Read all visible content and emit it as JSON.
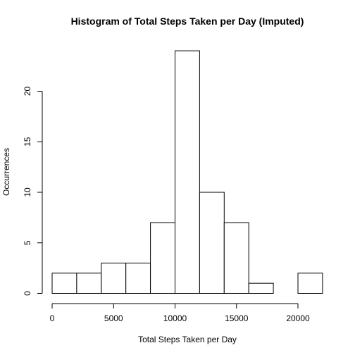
{
  "chart_data": {
    "type": "bar",
    "title": "Histogram of Total Steps Taken per Day (Imputed)",
    "xlabel": "Total Steps Taken per Day",
    "ylabel": "Occurrences",
    "bins": [
      {
        "start": 0,
        "end": 2000,
        "count": 2
      },
      {
        "start": 2000,
        "end": 4000,
        "count": 2
      },
      {
        "start": 4000,
        "end": 6000,
        "count": 3
      },
      {
        "start": 6000,
        "end": 8000,
        "count": 3
      },
      {
        "start": 8000,
        "end": 10000,
        "count": 7
      },
      {
        "start": 10000,
        "end": 12000,
        "count": 24
      },
      {
        "start": 12000,
        "end": 14000,
        "count": 10
      },
      {
        "start": 14000,
        "end": 16000,
        "count": 7
      },
      {
        "start": 16000,
        "end": 18000,
        "count": 1
      },
      {
        "start": 18000,
        "end": 20000,
        "count": 0
      },
      {
        "start": 20000,
        "end": 22000,
        "count": 2
      }
    ],
    "xticks": [
      0,
      5000,
      10000,
      15000,
      20000
    ],
    "yticks": [
      0,
      5,
      10,
      15,
      20
    ],
    "xlim": [
      0,
      22000
    ],
    "ylim": [
      0,
      24
    ],
    "grid": false
  }
}
